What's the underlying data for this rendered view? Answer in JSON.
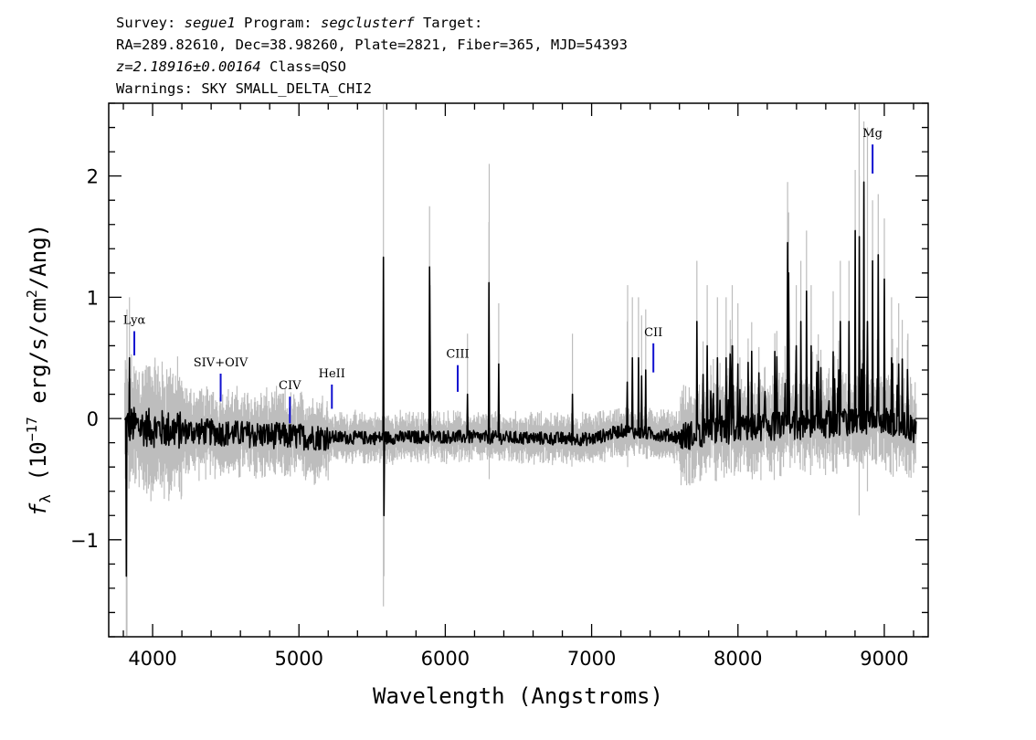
{
  "header": {
    "line1": {
      "survey_label": "Survey: ",
      "survey": "segue1",
      "program_label": " Program: ",
      "program": "segclusterf",
      "target_label": " Target:"
    },
    "line2": "RA=289.82610, Dec=38.98260, Plate=2821, Fiber=365, MJD=54393",
    "line3": {
      "redshift": "z=2.18916±0.00164",
      "class": " Class=QSO"
    },
    "line4": "Warnings: SKY SMALL_DELTA_CHI2"
  },
  "chart_data": {
    "type": "line",
    "title": "",
    "xlabel": "Wavelength (Angstroms)",
    "ylabel": "fλ (10⁻¹⁷ erg/s/cm²/Ang)",
    "ylabel_parts": {
      "f": "f",
      "lambda": "λ",
      "open": " (10",
      "exp": "−17",
      "mid": " erg/s/cm",
      "exp2": "2",
      "close": "/Ang)"
    },
    "xlim": [
      3700,
      9300
    ],
    "ylim": [
      -1.8,
      2.6
    ],
    "xticks": [
      4000,
      5000,
      6000,
      7000,
      8000,
      9000
    ],
    "xtick_labels": [
      "4000",
      "5000",
      "6000",
      "7000",
      "8000",
      "9000"
    ],
    "yticks": [
      -1,
      0,
      1,
      2
    ],
    "ytick_labels": [
      "−1",
      "0",
      "1",
      "2"
    ],
    "grid": false,
    "legend": "none",
    "colors": {
      "flux": "#000000",
      "error": "#bdbdbd",
      "line_marker": "#1010d0"
    },
    "spectrum_range": [
      3810,
      9220
    ],
    "continuum": {
      "x": [
        3810,
        4000,
        4200,
        4500,
        5000,
        5500,
        6000,
        6500,
        7000,
        7200,
        7600,
        8000,
        8500,
        9000,
        9220
      ],
      "y": [
        -0.05,
        -0.08,
        -0.1,
        -0.12,
        -0.15,
        -0.16,
        -0.15,
        -0.16,
        -0.17,
        -0.1,
        -0.15,
        -0.08,
        -0.05,
        -0.02,
        -0.1
      ]
    },
    "spikes": {
      "x": [
        3820,
        3840,
        5577,
        5580,
        5893,
        5896,
        6300,
        6364,
        6150,
        6870,
        7245,
        7280,
        7320,
        7340,
        7370,
        7720,
        7790,
        7860,
        7920,
        7960,
        8000,
        8340,
        8345,
        8400,
        8430,
        8470,
        8500,
        8650,
        8700,
        8760,
        8800,
        8828,
        8860,
        8885,
        8920,
        8960,
        9000,
        9050,
        9100,
        9160
      ],
      "y": [
        -1.3,
        0.5,
        1.33,
        -0.8,
        1.25,
        0.6,
        1.12,
        0.45,
        0.2,
        0.2,
        0.3,
        0.5,
        0.5,
        0.35,
        0.4,
        0.8,
        0.6,
        0.5,
        0.5,
        0.6,
        0.45,
        1.45,
        1.2,
        0.6,
        0.8,
        1.05,
        0.6,
        0.55,
        0.8,
        0.8,
        1.55,
        1.5,
        1.95,
        0.8,
        1.3,
        1.35,
        1.15,
        0.5,
        0.45,
        0.2
      ]
    },
    "emission_lines": [
      {
        "label": "Lyα",
        "x": 3875,
        "y0": 0.52,
        "y1": 0.72
      },
      {
        "label": "SIV+OIV",
        "x": 4465,
        "y0": 0.14,
        "y1": 0.37
      },
      {
        "label": "CIV",
        "x": 4938,
        "y0": -0.04,
        "y1": 0.18
      },
      {
        "label": "HeII",
        "x": 5225,
        "y0": 0.08,
        "y1": 0.28
      },
      {
        "label": "CIII",
        "x": 6085,
        "y0": 0.22,
        "y1": 0.44
      },
      {
        "label": "CII",
        "x": 7422,
        "y0": 0.38,
        "y1": 0.62
      },
      {
        "label": "Mg",
        "x": 8920,
        "y0": 2.02,
        "y1": 2.26
      }
    ]
  }
}
